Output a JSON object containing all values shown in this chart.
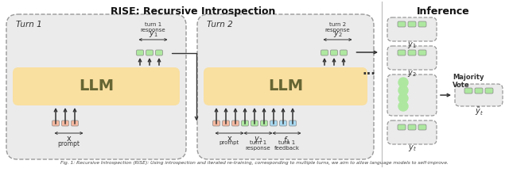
{
  "title_rise": "RISE: Recursive Introspection",
  "title_inference": "Inference",
  "llm_color": "#f9dfa0",
  "green_color": "#aee8a0",
  "salmon_color": "#f5b8a0",
  "blue_color": "#a8d8f0",
  "bg_gray": "#ebebeb",
  "dark": "#333333",
  "caption": "Fig. 1: Recursive Introspection (RISE): Using introspection and iterated re-training, corresponding to multiple turns, we aim to allow language models to self-improve."
}
